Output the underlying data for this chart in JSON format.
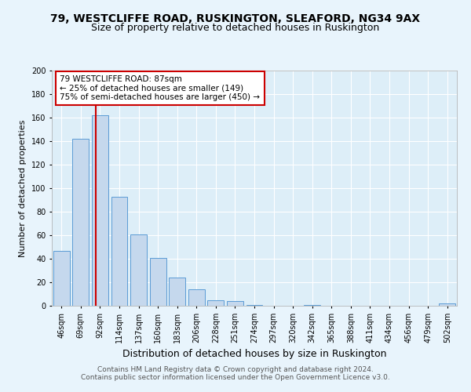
{
  "title1": "79, WESTCLIFFE ROAD, RUSKINGTON, SLEAFORD, NG34 9AX",
  "title2": "Size of property relative to detached houses in Ruskington",
  "xlabel": "Distribution of detached houses by size in Ruskington",
  "ylabel": "Number of detached properties",
  "categories": [
    "46sqm",
    "69sqm",
    "92sqm",
    "114sqm",
    "137sqm",
    "160sqm",
    "183sqm",
    "206sqm",
    "228sqm",
    "251sqm",
    "274sqm",
    "297sqm",
    "320sqm",
    "342sqm",
    "365sqm",
    "388sqm",
    "411sqm",
    "434sqm",
    "456sqm",
    "479sqm",
    "502sqm"
  ],
  "values": [
    47,
    142,
    162,
    93,
    61,
    41,
    24,
    14,
    5,
    4,
    1,
    0,
    0,
    1,
    0,
    0,
    0,
    0,
    0,
    0,
    2
  ],
  "bar_color": "#c5d8ed",
  "bar_edge_color": "#5b9bd5",
  "background_color": "#ddeef8",
  "fig_background_color": "#e8f4fc",
  "grid_color": "#ffffff",
  "vline_color": "#cc0000",
  "annotation_text": "79 WESTCLIFFE ROAD: 87sqm\n← 25% of detached houses are smaller (149)\n75% of semi-detached houses are larger (450) →",
  "annotation_box_color": "#ffffff",
  "annotation_box_edge": "#cc0000",
  "ylim": [
    0,
    200
  ],
  "yticks": [
    0,
    20,
    40,
    60,
    80,
    100,
    120,
    140,
    160,
    180,
    200
  ],
  "footer1": "Contains HM Land Registry data © Crown copyright and database right 2024.",
  "footer2": "Contains public sector information licensed under the Open Government Licence v3.0.",
  "title1_fontsize": 10,
  "title2_fontsize": 9,
  "xlabel_fontsize": 9,
  "ylabel_fontsize": 8,
  "tick_fontsize": 7,
  "footer_fontsize": 6.5,
  "annotation_fontsize": 7.5,
  "vline_pos": 1.78
}
